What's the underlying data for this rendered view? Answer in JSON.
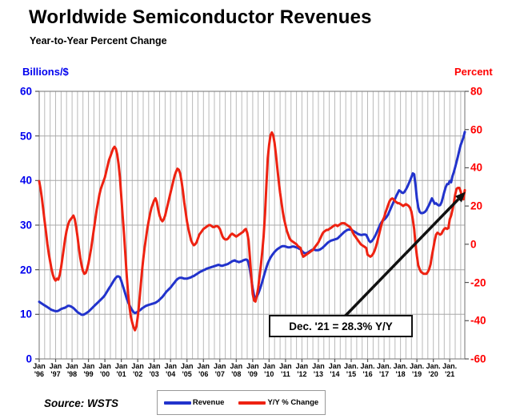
{
  "title": "Worldwide Semiconductor Revenues",
  "subtitle": "Year-to-Year Percent Change",
  "source": "Source: WSTS",
  "annotation": {
    "text": "Dec. '21 = 28.3% Y/Y"
  },
  "legend": {
    "items": [
      {
        "label": "Revenue",
        "color": "#2233cc"
      },
      {
        "label": "Y/Y % Change",
        "color": "#ee2211"
      }
    ]
  },
  "chart_data": {
    "type": "line",
    "title": "Worldwide Semiconductor Revenues",
    "subtitle": "Year-to-Year Percent Change",
    "grid": true,
    "legend_position": "bottom",
    "left_axis": {
      "label": "Billions/$",
      "color": "#0000ee",
      "range": [
        0,
        60
      ],
      "ticks": [
        60,
        50,
        40,
        30,
        20,
        10,
        0
      ]
    },
    "right_axis": {
      "label": "Percent",
      "color": "#ff0000",
      "range": [
        -60,
        80
      ],
      "ticks": [
        80,
        60,
        40,
        20,
        0,
        -20,
        -40,
        -60
      ]
    },
    "x_axis": {
      "start": "Jan 1996",
      "end": "Dec 2021",
      "tick_labels": [
        {
          "m": "Jan",
          "y": "'96"
        },
        {
          "m": "Jan",
          "y": "'97"
        },
        {
          "m": "Jan",
          "y": "'98"
        },
        {
          "m": "Jan",
          "y": "'99"
        },
        {
          "m": "Jan",
          "y": "'00"
        },
        {
          "m": "Jan",
          "y": "'01"
        },
        {
          "m": "Jan",
          "y": "'02"
        },
        {
          "m": "Jan",
          "y": "'03"
        },
        {
          "m": "Jan",
          "y": "'04"
        },
        {
          "m": "Jan",
          "y": "'05"
        },
        {
          "m": "Jan",
          "y": "'06"
        },
        {
          "m": "Jan",
          "y": "'07"
        },
        {
          "m": "Jan",
          "y": "'08"
        },
        {
          "m": "Jan",
          "y": "'09"
        },
        {
          "m": "Jan",
          "y": "'10"
        },
        {
          "m": "Jan",
          "y": "'11"
        },
        {
          "m": "Jan",
          "y": "'12"
        },
        {
          "m": "Jan",
          "y": "'13"
        },
        {
          "m": "Jan",
          "y": "'14"
        },
        {
          "m": "Jan.",
          "y": "'15"
        },
        {
          "m": "Jan.",
          "y": "'16"
        },
        {
          "m": "Jan.",
          "y": "'17"
        },
        {
          "m": "Jan.",
          "y": "'18"
        },
        {
          "m": "Jan.",
          "y": "'19"
        },
        {
          "m": "Jan.",
          "y": "'20"
        },
        {
          "m": "Jan.",
          "y": "'21"
        }
      ]
    },
    "annotation": {
      "text": "Dec. '21 = 28.3% Y/Y",
      "points_to": "Dec 2021 value of Y/Y % Change line (28.3%)"
    },
    "series": [
      {
        "name": "Revenue",
        "axis": "left",
        "units": "billions of dollars (3-month average)",
        "color": "#2233cc",
        "monthly_by_year": [
          [
            12.8,
            12.6,
            12.4,
            12.2,
            12.0,
            11.8,
            11.6,
            11.4,
            11.2,
            11.0,
            10.9,
            10.8
          ],
          [
            10.7,
            10.7,
            10.8,
            11.0,
            11.2,
            11.3,
            11.4,
            11.5,
            11.7,
            11.9,
            11.9,
            11.8
          ],
          [
            11.6,
            11.4,
            11.1,
            10.8,
            10.5,
            10.3,
            10.1,
            9.9,
            9.9,
            10.0,
            10.2,
            10.4
          ],
          [
            10.6,
            10.9,
            11.2,
            11.5,
            11.8,
            12.1,
            12.4,
            12.7,
            13.0,
            13.3,
            13.6,
            13.9
          ],
          [
            14.3,
            14.8,
            15.3,
            15.8,
            16.3,
            16.8,
            17.3,
            17.8,
            18.2,
            18.5,
            18.5,
            18.3
          ],
          [
            17.5,
            16.5,
            15.5,
            14.5,
            13.5,
            12.7,
            12.0,
            11.4,
            10.9,
            10.5,
            10.3,
            10.4
          ],
          [
            10.6,
            10.8,
            11.0,
            11.3,
            11.5,
            11.7,
            11.9,
            12.0,
            12.1,
            12.2,
            12.3,
            12.4
          ],
          [
            12.5,
            12.6,
            12.8,
            13.0,
            13.3,
            13.6,
            13.9,
            14.3,
            14.7,
            15.1,
            15.4,
            15.7
          ],
          [
            16.0,
            16.4,
            16.8,
            17.2,
            17.6,
            17.9,
            18.1,
            18.2,
            18.2,
            18.1,
            18.0,
            18.0
          ],
          [
            18.0,
            18.1,
            18.2,
            18.3,
            18.5,
            18.6,
            18.8,
            19.0,
            19.2,
            19.4,
            19.6,
            19.7
          ],
          [
            19.9,
            20.0,
            20.2,
            20.3,
            20.4,
            20.5,
            20.6,
            20.7,
            20.8,
            20.9,
            21.0,
            21.1
          ],
          [
            21.0,
            20.9,
            20.9,
            21.0,
            21.1,
            21.2,
            21.3,
            21.5,
            21.7,
            21.9,
            22.0,
            22.1
          ],
          [
            21.9,
            21.8,
            21.7,
            21.8,
            21.9,
            22.1,
            22.2,
            22.3,
            22.2,
            21.5,
            20.0,
            18.0
          ],
          [
            15.8,
            14.2,
            13.7,
            14.0,
            14.6,
            15.4,
            16.3,
            17.3,
            18.4,
            19.5,
            20.5,
            21.4
          ],
          [
            22.1,
            22.7,
            23.2,
            23.6,
            24.0,
            24.3,
            24.6,
            24.8,
            25.0,
            25.2,
            25.3,
            25.3
          ],
          [
            25.2,
            25.1,
            25.0,
            25.0,
            25.1,
            25.2,
            25.2,
            25.1,
            25.0,
            24.9,
            24.7,
            24.6
          ],
          [
            24.2,
            23.9,
            23.7,
            23.7,
            23.8,
            24.0,
            24.2,
            24.4,
            24.5,
            24.5,
            24.4,
            24.4
          ],
          [
            24.4,
            24.5,
            24.7,
            24.9,
            25.2,
            25.5,
            25.8,
            26.1,
            26.3,
            26.5,
            26.6,
            26.7
          ],
          [
            26.8,
            26.9,
            27.0,
            27.3,
            27.6,
            27.9,
            28.2,
            28.5,
            28.7,
            28.9,
            29.0,
            29.0
          ],
          [
            29.0,
            28.8,
            28.6,
            28.4,
            28.2,
            28.0,
            27.9,
            27.8,
            27.8,
            27.9,
            27.9,
            27.8
          ],
          [
            27.2,
            26.5,
            26.2,
            26.4,
            26.8,
            27.3,
            27.9,
            28.6,
            29.3,
            30.0,
            30.6,
            31.0
          ],
          [
            31.2,
            31.5,
            31.9,
            32.4,
            33.1,
            33.8,
            34.5,
            35.2,
            35.9,
            36.6,
            37.2,
            37.8
          ],
          [
            37.6,
            37.3,
            37.2,
            37.5,
            38.0,
            38.6,
            39.3,
            40.0,
            40.8,
            41.6,
            41.4,
            39.0
          ],
          [
            36.0,
            34.0,
            33.0,
            32.7,
            32.7,
            32.8,
            33.0,
            33.4,
            34.0,
            34.6,
            35.3,
            36.0
          ],
          [
            35.4,
            34.8,
            34.9,
            34.6,
            34.4,
            34.5,
            35.1,
            36.2,
            37.4,
            38.5,
            39.2,
            39.2
          ],
          [
            39.9,
            39.6,
            41.0,
            41.9,
            43.0,
            44.2,
            45.4,
            46.8,
            48.0,
            48.8,
            49.7,
            50.9
          ]
        ]
      },
      {
        "name": "Y/Y % Change",
        "axis": "right",
        "units": "percent",
        "color": "#ee2211",
        "monthly_by_year": [
          [
            33,
            29,
            24,
            18,
            12,
            6,
            0,
            -5,
            -9,
            -13,
            -16,
            -18
          ],
          [
            -19,
            -18,
            -18.5,
            -16,
            -12,
            -7,
            -2,
            3,
            7,
            10,
            12,
            13
          ],
          [
            14,
            15,
            13,
            9,
            4,
            -2,
            -7,
            -11,
            -14,
            -15.5,
            -15,
            -13
          ],
          [
            -10,
            -6,
            -2,
            3,
            8,
            13,
            18,
            22,
            26,
            29,
            31,
            33
          ],
          [
            35,
            38,
            41,
            44,
            46,
            48,
            50,
            51,
            50,
            47,
            42,
            35
          ],
          [
            25,
            15,
            5,
            -6,
            -17,
            -26,
            -33,
            -38,
            -41,
            -43.5,
            -45,
            -43
          ],
          [
            -38,
            -31,
            -23,
            -15,
            -8,
            -2,
            3,
            8,
            12,
            16,
            19,
            21
          ],
          [
            23,
            24,
            22,
            18,
            15,
            13,
            12,
            13,
            15,
            18,
            21,
            24
          ],
          [
            27,
            30,
            33,
            36,
            38,
            39.5,
            39,
            37,
            33,
            28,
            22,
            17
          ],
          [
            12,
            8,
            5,
            2,
            0.5,
            -0.5,
            0,
            1,
            3,
            5,
            6,
            7
          ],
          [
            8,
            8.5,
            9,
            9.5,
            10,
            10,
            9.5,
            9,
            9,
            9.5,
            9.5,
            9
          ],
          [
            8,
            6,
            4,
            3,
            2.5,
            2.5,
            3,
            4,
            5,
            5.5,
            5,
            4.5
          ],
          [
            4,
            4.5,
            5,
            5.5,
            6,
            6.5,
            7.5,
            8,
            6,
            2,
            -7,
            -17
          ],
          [
            -26,
            -29.5,
            -30,
            -27,
            -23,
            -17,
            -11,
            -4,
            4,
            16,
            31,
            45
          ],
          [
            52,
            57,
            58.5,
            57,
            53,
            47,
            40,
            33,
            27,
            22,
            17,
            13
          ],
          [
            10,
            7,
            5,
            3,
            2,
            1.5,
            1,
            0.5,
            0,
            -1,
            -1.5,
            -2
          ],
          [
            -5,
            -6.5,
            -6,
            -5.5,
            -5,
            -4.5,
            -4,
            -3.5,
            -3,
            -2,
            -1,
            0
          ],
          [
            1,
            2.5,
            4,
            5.5,
            6.5,
            7,
            7.5,
            7.5,
            8,
            8.5,
            9,
            9.5
          ],
          [
            10,
            10,
            9.5,
            10,
            10.5,
            11,
            11,
            11,
            10.5,
            10,
            9.5,
            9
          ],
          [
            8,
            6.5,
            5,
            4,
            3,
            2,
            1,
            0,
            -0.5,
            -1,
            -1.5,
            -2
          ],
          [
            -5.5,
            -6,
            -6.5,
            -6,
            -5,
            -3.5,
            -1.5,
            1,
            4,
            7,
            10,
            12.5
          ],
          [
            14,
            16.5,
            18.5,
            20.5,
            22.5,
            23.5,
            24,
            23.5,
            22.5,
            22,
            21.5,
            21.5
          ],
          [
            21,
            20.5,
            20,
            20.5,
            21,
            20.5,
            20,
            19,
            17,
            13,
            8,
            0
          ],
          [
            -6,
            -11,
            -13,
            -14.5,
            -15,
            -15.5,
            -15.5,
            -15.5,
            -14.5,
            -13,
            -10.5,
            -6
          ],
          [
            -2,
            2,
            5,
            6,
            5.5,
            5,
            5.5,
            7,
            8,
            8.5,
            8,
            8.5
          ],
          [
            13,
            15,
            18,
            21.5,
            26,
            29,
            29.5,
            29.5,
            27.5,
            24.5,
            23.5,
            28.3
          ]
        ]
      }
    ]
  }
}
